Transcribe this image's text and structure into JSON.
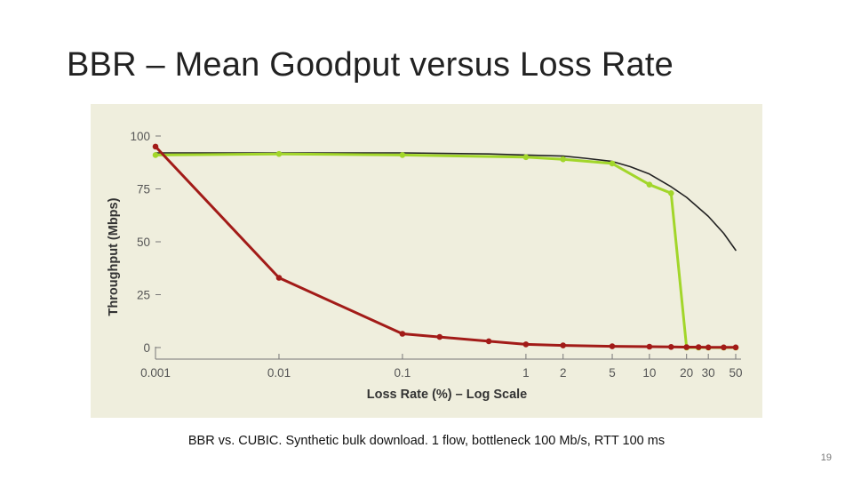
{
  "slide": {
    "title": "BBR – Mean Goodput versus Loss Rate",
    "caption": "BBR vs. CUBIC.  Synthetic bulk download.  1 flow, bottleneck 100 Mb/s, RTT 100 ms",
    "page_number": "19"
  },
  "chart_data": {
    "type": "line",
    "title": "",
    "xlabel": "Loss Rate (%) – Log Scale",
    "ylabel": "Throughput (Mbps)",
    "x_scale": "log",
    "xlim": [
      0.001,
      50
    ],
    "ylim": [
      0,
      100
    ],
    "x_ticks": [
      {
        "value": 0.001,
        "label": "0.001"
      },
      {
        "value": 0.01,
        "label": "0.01"
      },
      {
        "value": 0.1,
        "label": "0.1"
      },
      {
        "value": 1,
        "label": "1"
      },
      {
        "value": 2,
        "label": "2"
      },
      {
        "value": 5,
        "label": "5"
      },
      {
        "value": 10,
        "label": "10"
      },
      {
        "value": 20,
        "label": "20"
      },
      {
        "value": 30,
        "label": "30"
      },
      {
        "value": 50,
        "label": "50"
      }
    ],
    "y_ticks": [
      {
        "value": 0,
        "label": "0"
      },
      {
        "value": 25,
        "label": "25"
      },
      {
        "value": 50,
        "label": "50"
      },
      {
        "value": 75,
        "label": "75"
      },
      {
        "value": 100,
        "label": "100"
      }
    ],
    "grid": false,
    "legend": "none",
    "series": [
      {
        "color": "#a2d62a",
        "markers": true,
        "x": [
          0.001,
          0.01,
          0.1,
          1,
          2,
          5,
          10,
          15,
          20,
          25,
          30,
          40,
          50
        ],
        "y": [
          91,
          91.5,
          91,
          90,
          89,
          87,
          77,
          73,
          0,
          0,
          0,
          0,
          0
        ]
      },
      {
        "color": "#a21b18",
        "markers": true,
        "x": [
          0.001,
          0.01,
          0.1,
          0.2,
          0.5,
          1,
          2,
          5,
          10,
          15,
          20,
          25,
          30,
          40,
          50
        ],
        "y": [
          95,
          33,
          6.5,
          5,
          3,
          1.5,
          1,
          0.6,
          0.4,
          0.3,
          0.2,
          0.2,
          0.1,
          0.1,
          0.1
        ]
      },
      {
        "color": "#222222",
        "markers": false,
        "x": [
          0.001,
          0.01,
          0.1,
          0.5,
          1,
          2,
          3,
          5,
          7,
          10,
          15,
          20,
          30,
          40,
          50
        ],
        "y": [
          92,
          92,
          92,
          91.5,
          91,
          90.5,
          89.5,
          88,
          85.5,
          82,
          76,
          71,
          62,
          54,
          46
        ]
      }
    ]
  }
}
